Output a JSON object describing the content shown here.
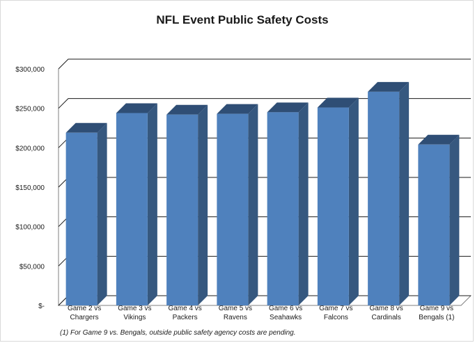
{
  "chart_data": {
    "type": "bar",
    "title": "NFL Event Public Safety Costs",
    "categories": [
      [
        "Game 2 vs",
        "Chargers"
      ],
      [
        "Game 3 vs",
        "Vikings"
      ],
      [
        "Game 4 vs",
        "Packers"
      ],
      [
        "Game 5 vs",
        "Ravens"
      ],
      [
        "Game 6 vs",
        "Seahawks"
      ],
      [
        "Game 7 vs",
        "Falcons"
      ],
      [
        "Game 8 vs",
        "Cardinals"
      ],
      [
        "Game 9 vs",
        "Bengals (1)"
      ]
    ],
    "values": [
      219000,
      244000,
      242000,
      243000,
      245000,
      251000,
      271000,
      204000
    ],
    "ylim": [
      0,
      300000
    ],
    "y_ticks": [
      0,
      50000,
      100000,
      150000,
      200000,
      250000,
      300000
    ],
    "y_tick_labels": [
      "$-",
      "$50,000",
      "$100,000",
      "$150,000",
      "$200,000",
      "$250,000",
      "$300,000"
    ],
    "xlabel": "",
    "ylabel": "",
    "grid": true,
    "style": "3d-column",
    "colors": {
      "bar_front": "#4f81bd",
      "bar_side": "#36587f",
      "bar_top": "#2f4e75",
      "grid": "#1a1a1a"
    }
  },
  "footnote": "(1)  For Game 9 vs. Bengals, outside public safety agency costs are pending."
}
